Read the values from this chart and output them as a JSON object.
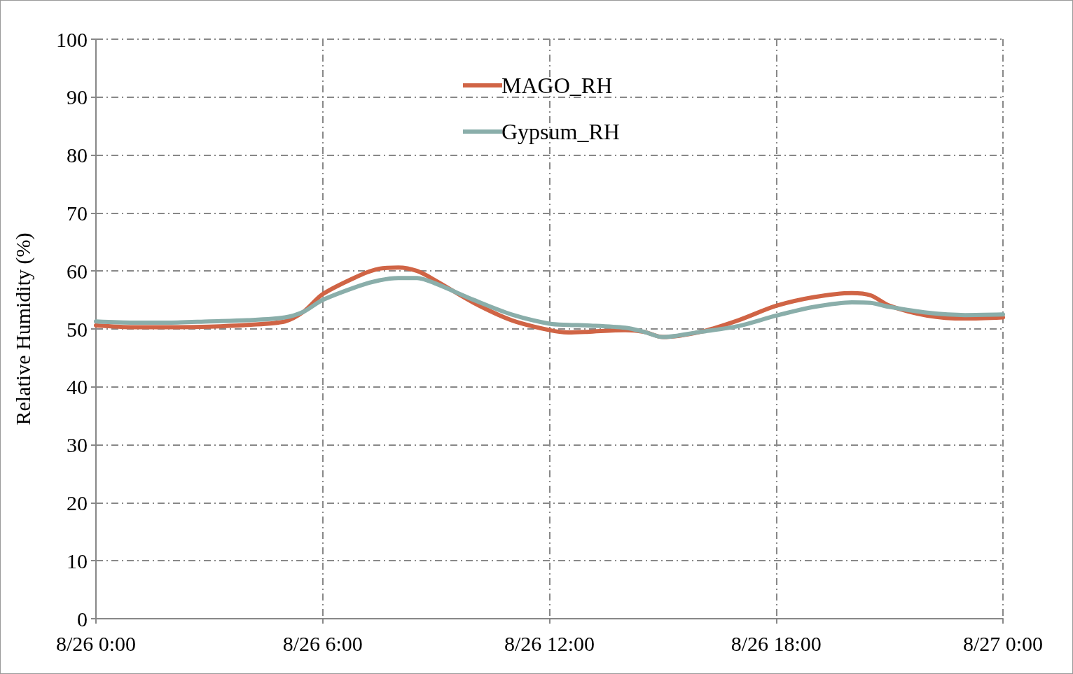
{
  "chart_data": {
    "type": "line",
    "ylabel": "Relative Humidity (%)",
    "x": [
      "--08-26T00:00",
      "--08-26T01:00",
      "--08-26T02:00",
      "--08-26T03:00",
      "--08-26T04:00",
      "--08-26T05:00",
      "--08-26T05:30",
      "--08-26T06:00",
      "--08-26T07:00",
      "--08-26T07:30",
      "--08-26T08:00",
      "--08-26T08:30",
      "--08-26T09:00",
      "--08-26T10:00",
      "--08-26T11:00",
      "--08-26T12:00",
      "--08-26T12:30",
      "--08-26T13:00",
      "--08-26T14:00",
      "--08-26T14:30",
      "--08-26T15:00",
      "--08-26T16:00",
      "--08-26T17:00",
      "--08-26T18:00",
      "--08-26T19:00",
      "--08-26T20:00",
      "--08-26T20:30",
      "--08-26T21:00",
      "--08-26T22:00",
      "--08-26T23:00",
      "--08-27T00:00"
    ],
    "series": [
      {
        "name": "MAGO_RH",
        "color": "#d06445",
        "values": [
          50.6,
          50.3,
          50.3,
          50.4,
          50.7,
          51.3,
          53,
          56,
          59.3,
          60.4,
          60.6,
          60,
          58.3,
          54.5,
          51.5,
          49.8,
          49.4,
          49.5,
          49.8,
          49.5,
          48.6,
          49.5,
          51.5,
          54,
          55.5,
          56.2,
          55.8,
          54,
          52.3,
          51.8,
          52
        ]
      },
      {
        "name": "Gypsum_RH",
        "color": "#8aaeaa",
        "values": [
          51.3,
          51.1,
          51.1,
          51.3,
          51.5,
          52,
          53,
          55,
          57.5,
          58.4,
          58.8,
          58.8,
          57.8,
          55,
          52.5,
          50.9,
          50.7,
          50.6,
          50.2,
          49.5,
          48.6,
          49.5,
          50.5,
          52.3,
          53.8,
          54.6,
          54.5,
          53.8,
          52.8,
          52.4,
          52.5
        ]
      }
    ],
    "xlim": [
      "--08-26T00:00",
      "--08-27T00:00"
    ],
    "xticks": [
      {
        "value": "--08-26T00:00",
        "label": "8/26 0:00"
      },
      {
        "value": "--08-26T06:00",
        "label": "8/26 6:00"
      },
      {
        "value": "--08-26T12:00",
        "label": "8/26 12:00"
      },
      {
        "value": "--08-26T18:00",
        "label": "8/26 18:00"
      },
      {
        "value": "--08-27T00:00",
        "label": "8/27 0:00"
      }
    ],
    "ylim": [
      0,
      100
    ],
    "yticks": [
      0,
      10,
      20,
      30,
      40,
      50,
      60,
      70,
      80,
      90,
      100
    ],
    "grid": true,
    "legend": "top",
    "marker": "none",
    "line_style": "solid"
  }
}
